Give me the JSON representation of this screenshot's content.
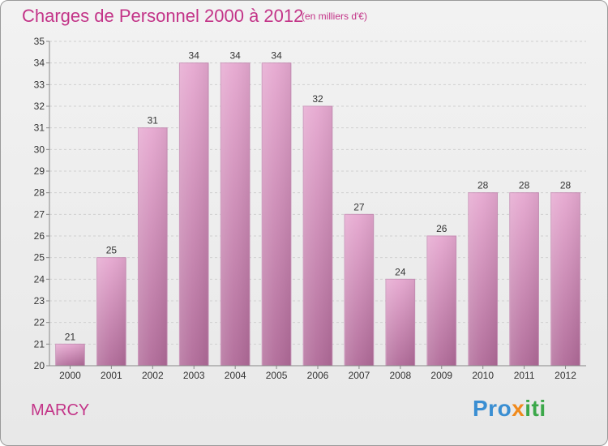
{
  "header": {
    "title": "Charges de Personnel 2000 à 2012",
    "subtitle": "(en milliers d'€)"
  },
  "footer": {
    "town": "MARCY",
    "logo_text": "Proxiti"
  },
  "colors": {
    "title": "#c33488",
    "bar_top": "#e6a8d0",
    "bar_bottom": "#b06a98",
    "grid": "#d0d0d0"
  },
  "chart_data": {
    "type": "bar",
    "title": "Charges de Personnel 2000 à 2012",
    "subtitle": "(en milliers d'€)",
    "categories": [
      "2000",
      "2001",
      "2002",
      "2003",
      "2004",
      "2005",
      "2006",
      "2007",
      "2008",
      "2009",
      "2010",
      "2011",
      "2012"
    ],
    "values": [
      21,
      25,
      31,
      34,
      34,
      34,
      32,
      27,
      24,
      26,
      28,
      28,
      28
    ],
    "ylim": [
      20,
      35
    ],
    "yticks": [
      20,
      21,
      22,
      23,
      24,
      25,
      26,
      27,
      28,
      29,
      30,
      31,
      32,
      33,
      34,
      35
    ],
    "xlabel": "",
    "ylabel": "",
    "grid": true,
    "data_labels": true
  }
}
